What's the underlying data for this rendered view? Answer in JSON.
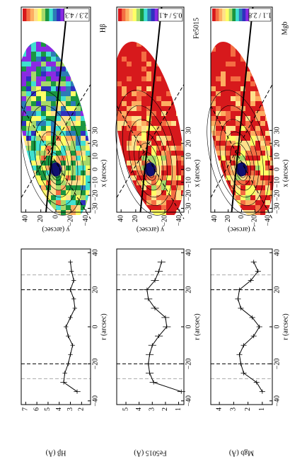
{
  "chart_data": [
    {
      "type": "map",
      "title": "Hβ",
      "colorbar_label": "2.3 / 4.3",
      "xlabel": "x (arcsec)",
      "ylabel": "y (arcsec)",
      "xlim": [
        -33,
        125
      ],
      "xticks": [
        {
          "value": -30,
          "label": "−30"
        },
        {
          "value": -20,
          "label": "−20"
        },
        {
          "value": -10,
          "label": "−10"
        },
        0,
        10,
        20,
        30
      ],
      "ylim": [
        46,
        -46
      ],
      "yticks": [
        40,
        20,
        0,
        {
          "value": -20,
          "label": "−20"
        },
        {
          "value": -40,
          "label": "−40"
        }
      ]
    },
    {
      "type": "map",
      "title": "Fe5015",
      "colorbar_label": "0.5 / 4.1",
      "xlabel": "x (arcsec)",
      "ylabel": "y (arcsec)",
      "xlim": [
        -33,
        125
      ],
      "xticks": [
        {
          "value": -30,
          "label": "−30"
        },
        {
          "value": -20,
          "label": "−20"
        },
        {
          "value": -10,
          "label": "−10"
        },
        0,
        10,
        20,
        30
      ],
      "ylim": [
        46,
        -46
      ],
      "yticks": [
        40,
        20,
        0,
        {
          "value": -20,
          "label": "−20"
        },
        {
          "value": -40,
          "label": "−40"
        }
      ]
    },
    {
      "type": "map",
      "title": "Mgb",
      "colorbar_label": "1.1 / 2.8",
      "xlabel": "x (arcsec)",
      "ylabel": "y (arcsec)",
      "xlim": [
        -33,
        125
      ],
      "xticks": [
        {
          "value": -30,
          "label": "−30"
        },
        {
          "value": -20,
          "label": "−20"
        },
        {
          "value": -10,
          "label": "−10"
        },
        0,
        10,
        20,
        30
      ],
      "ylim": [
        46,
        -46
      ],
      "yticks": [
        40,
        20,
        0,
        {
          "value": -20,
          "label": "−20"
        },
        {
          "value": -40,
          "label": "−40"
        }
      ]
    },
    {
      "type": "line",
      "xlabel": "r (arcsec)",
      "ylabel": "Hβ (Å)",
      "color": "#000000",
      "x": [
        -35,
        -30,
        -25,
        -20,
        -15,
        -10,
        -5,
        0,
        5,
        10,
        15,
        20,
        25,
        30,
        35
      ],
      "values": [
        2.4,
        3.6,
        3.5,
        3.2,
        3.0,
        2.8,
        3.2,
        3.4,
        3.0,
        2.6,
        2.7,
        3.0,
        2.7,
        2.9,
        3.0
      ],
      "errors": [
        0.3,
        0.3,
        0.2,
        0.2,
        0.2,
        0.2,
        0.2,
        0.2,
        0.2,
        0.2,
        0.2,
        0.3,
        0.2,
        0.2,
        0.2
      ],
      "xlim": [
        -42,
        42
      ],
      "xticks": [
        {
          "value": -40,
          "label": "−40"
        },
        {
          "value": -20,
          "label": "−20"
        },
        0,
        20,
        40
      ],
      "ylim": [
        7.4,
        1.2
      ],
      "yticks": [
        7,
        6,
        5,
        4,
        3,
        2
      ],
      "vlines": [
        {
          "value": -28,
          "color": "#aaaaaa"
        },
        {
          "value": -20,
          "color": "#000000"
        },
        {
          "value": 20,
          "color": "#000000"
        },
        {
          "value": 28,
          "color": "#aaaaaa"
        }
      ]
    },
    {
      "type": "line",
      "xlabel": "r (arcsec)",
      "ylabel": "Fe5015 (Å)",
      "color": "#000000",
      "x": [
        -35,
        -30,
        -25,
        -20,
        -15,
        -10,
        -5,
        0,
        5,
        10,
        15,
        20,
        25,
        30,
        35
      ],
      "values": [
        0.8,
        2.9,
        3.2,
        3.3,
        3.2,
        3.0,
        2.5,
        1.9,
        2.0,
        2.8,
        3.3,
        3.4,
        2.8,
        2.5,
        2.3
      ],
      "errors": [
        0.3,
        0.3,
        0.3,
        0.3,
        0.3,
        0.3,
        0.3,
        0.3,
        0.3,
        0.3,
        0.3,
        0.3,
        0.3,
        0.3,
        0.3
      ],
      "xlim": [
        -42,
        42
      ],
      "xticks": [
        {
          "value": -40,
          "label": "−40"
        },
        {
          "value": -20,
          "label": "−20"
        },
        0,
        20,
        40
      ],
      "ylim": [
        5.7,
        0.6
      ],
      "yticks": [
        5,
        4,
        3,
        2,
        1
      ],
      "vlines": [
        {
          "value": -28,
          "color": "#aaaaaa"
        },
        {
          "value": -20,
          "color": "#000000"
        },
        {
          "value": 20,
          "color": "#000000"
        },
        {
          "value": 28,
          "color": "#aaaaaa"
        }
      ]
    },
    {
      "type": "line",
      "xlabel": "r (arcsec)",
      "ylabel": "Mgb (Å)",
      "color": "#000000",
      "x": [
        -35,
        -30,
        -25,
        -20,
        -15,
        -10,
        -5,
        0,
        5,
        10,
        15,
        20,
        25,
        30,
        35
      ],
      "values": [
        1.0,
        1.4,
        2.3,
        2.5,
        2.6,
        2.3,
        1.6,
        1.2,
        1.7,
        2.5,
        2.7,
        2.6,
        1.8,
        1.3,
        1.6
      ],
      "errors": [
        0.2,
        0.2,
        0.2,
        0.2,
        0.2,
        0.2,
        0.2,
        0.2,
        0.2,
        0.2,
        0.2,
        0.2,
        0.2,
        0.2,
        0.2
      ],
      "xlim": [
        -42,
        42
      ],
      "xticks": [
        {
          "value": -40,
          "label": "−40"
        },
        {
          "value": -20,
          "label": "−20"
        },
        0,
        20,
        40
      ],
      "ylim": [
        4.6,
        0.3
      ],
      "yticks": [
        4,
        3,
        2,
        1
      ],
      "vlines": [
        {
          "value": -28,
          "color": "#aaaaaa"
        },
        {
          "value": -20,
          "color": "#000000"
        },
        {
          "value": 20,
          "color": "#000000"
        },
        {
          "value": 28,
          "color": "#aaaaaa"
        }
      ]
    }
  ]
}
